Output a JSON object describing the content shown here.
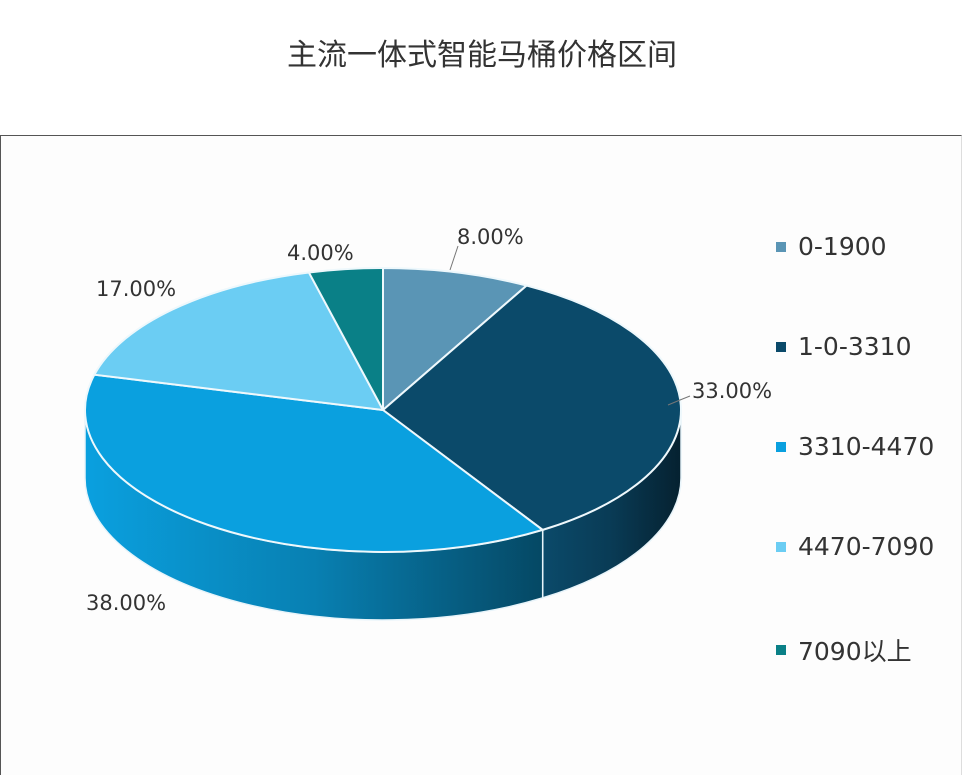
{
  "chart_data": {
    "type": "pie",
    "title": "主流一体式智能马桶价格区间",
    "categories": [
      "0-1900",
      "1-0-3310",
      "3310-4470",
      "4470-7090",
      "7090以上"
    ],
    "values": [
      8,
      33,
      38,
      17,
      4
    ],
    "labels": [
      "8.00%",
      "33.00%",
      "38.00%",
      "17.00%",
      "4.00%"
    ],
    "colors": [
      "#5a95b5",
      "#0b4a6a",
      "#0aa0df",
      "#6bcdf3",
      "#0a8087"
    ],
    "legend_position": "right",
    "style": "3d"
  }
}
